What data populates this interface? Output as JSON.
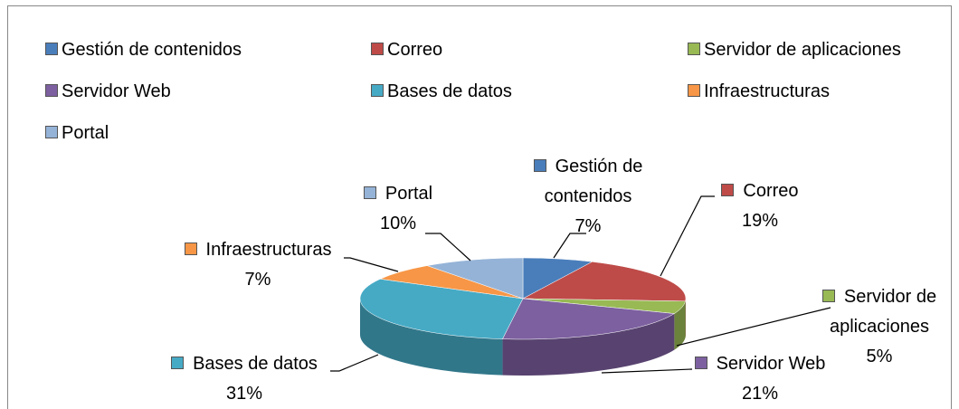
{
  "chart_data": {
    "type": "pie3d",
    "categories": [
      "Gestión de contenidos",
      "Correo",
      "Servidor de aplicaciones",
      "Servidor Web",
      "Bases de datos",
      "Infraestructuras",
      "Portal"
    ],
    "values": [
      7,
      19,
      5,
      21,
      31,
      7,
      10
    ],
    "value_labels": [
      "7%",
      "19%",
      "5%",
      "21%",
      "31%",
      "7%",
      "10%"
    ],
    "colors": [
      "#4a7ebb",
      "#be4b48",
      "#98b954",
      "#7d60a0",
      "#46aac5",
      "#f79646",
      "#95b3d7"
    ],
    "legend": "top"
  }
}
